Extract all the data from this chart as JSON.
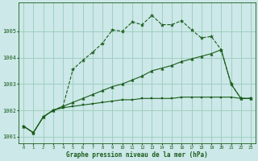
{
  "title": "Graphe pression niveau de la mer (hPa)",
  "bg_color": "#cce8e8",
  "grid_color": "#99ccbb",
  "line_color": "#1a5c1a",
  "xlim": [
    -0.5,
    23.5
  ],
  "ylim": [
    1000.75,
    1006.1
  ],
  "yticks": [
    1001,
    1002,
    1003,
    1004,
    1005
  ],
  "xticks": [
    0,
    1,
    2,
    3,
    4,
    5,
    6,
    7,
    8,
    9,
    10,
    11,
    12,
    13,
    14,
    15,
    16,
    17,
    18,
    19,
    20,
    21,
    22,
    23
  ],
  "s1_x": [
    0,
    1,
    2,
    3,
    4,
    5,
    6,
    7,
    8,
    9,
    10,
    11,
    12,
    13,
    14,
    15,
    16,
    17,
    18,
    19,
    20,
    21,
    22,
    23
  ],
  "s1_y": [
    1001.4,
    1001.15,
    1001.75,
    1002.0,
    1002.15,
    1003.55,
    1003.9,
    1004.2,
    1004.55,
    1005.05,
    1005.0,
    1005.35,
    1005.25,
    1005.6,
    1005.25,
    1005.25,
    1005.4,
    1005.05,
    1004.75,
    1004.8,
    1004.3,
    1003.0,
    1002.45,
    1002.45
  ],
  "s2_x": [
    0,
    1,
    2,
    3,
    4,
    5,
    6,
    7,
    8,
    9,
    10,
    11,
    12,
    13,
    14,
    15,
    16,
    17,
    18,
    19,
    20,
    21,
    22,
    23
  ],
  "s2_y": [
    1001.4,
    1001.15,
    1001.75,
    1002.0,
    1002.15,
    1002.3,
    1002.45,
    1002.6,
    1002.75,
    1002.9,
    1003.0,
    1003.15,
    1003.3,
    1003.5,
    1003.6,
    1003.7,
    1003.85,
    1003.95,
    1004.05,
    1004.15,
    1004.3,
    1003.0,
    1002.45,
    1002.45
  ],
  "s3_x": [
    0,
    1,
    2,
    3,
    4,
    5,
    6,
    7,
    8,
    9,
    10,
    11,
    12,
    13,
    14,
    15,
    16,
    17,
    18,
    19,
    20,
    21,
    22,
    23
  ],
  "s3_y": [
    1001.4,
    1001.15,
    1001.75,
    1002.0,
    1002.1,
    1002.15,
    1002.2,
    1002.25,
    1002.3,
    1002.35,
    1002.4,
    1002.4,
    1002.45,
    1002.45,
    1002.45,
    1002.45,
    1002.5,
    1002.5,
    1002.5,
    1002.5,
    1002.5,
    1002.5,
    1002.45,
    1002.45
  ]
}
